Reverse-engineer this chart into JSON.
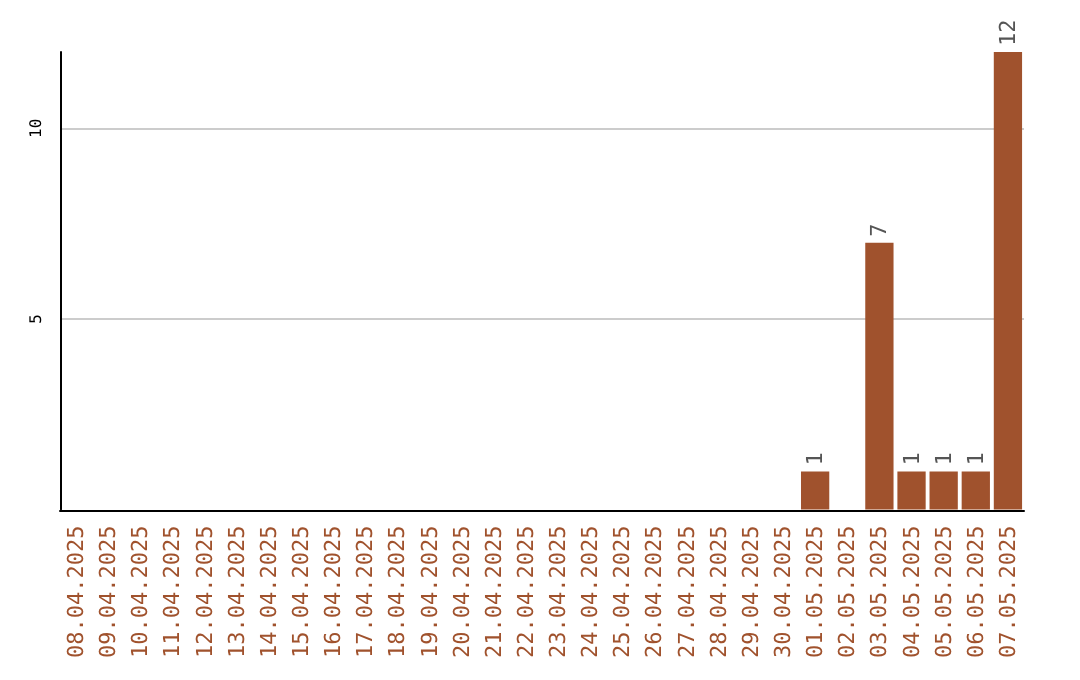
{
  "chart_data": {
    "type": "bar",
    "categories": [
      "08.04.2025",
      "09.04.2025",
      "10.04.2025",
      "11.04.2025",
      "12.04.2025",
      "13.04.2025",
      "14.04.2025",
      "15.04.2025",
      "16.04.2025",
      "17.04.2025",
      "18.04.2025",
      "19.04.2025",
      "20.04.2025",
      "21.04.2025",
      "22.04.2025",
      "23.04.2025",
      "24.04.2025",
      "25.04.2025",
      "26.04.2025",
      "27.04.2025",
      "28.04.2025",
      "29.04.2025",
      "30.04.2025",
      "01.05.2025",
      "02.05.2025",
      "03.05.2025",
      "04.05.2025",
      "05.05.2025",
      "06.05.2025",
      "07.05.2025"
    ],
    "values": [
      0,
      0,
      0,
      0,
      0,
      0,
      0,
      0,
      0,
      0,
      0,
      0,
      0,
      0,
      0,
      0,
      0,
      0,
      0,
      0,
      0,
      0,
      0,
      1,
      0,
      7,
      1,
      1,
      1,
      12
    ],
    "value_labels": [
      null,
      null,
      null,
      null,
      null,
      null,
      null,
      null,
      null,
      null,
      null,
      null,
      null,
      null,
      null,
      null,
      null,
      null,
      null,
      null,
      null,
      null,
      null,
      "1",
      null,
      "7",
      "1",
      "1",
      "1",
      "12"
    ],
    "color": "#a0522d",
    "ylim": [
      0,
      12
    ],
    "yticks": [
      5,
      10
    ],
    "grid": "y"
  }
}
